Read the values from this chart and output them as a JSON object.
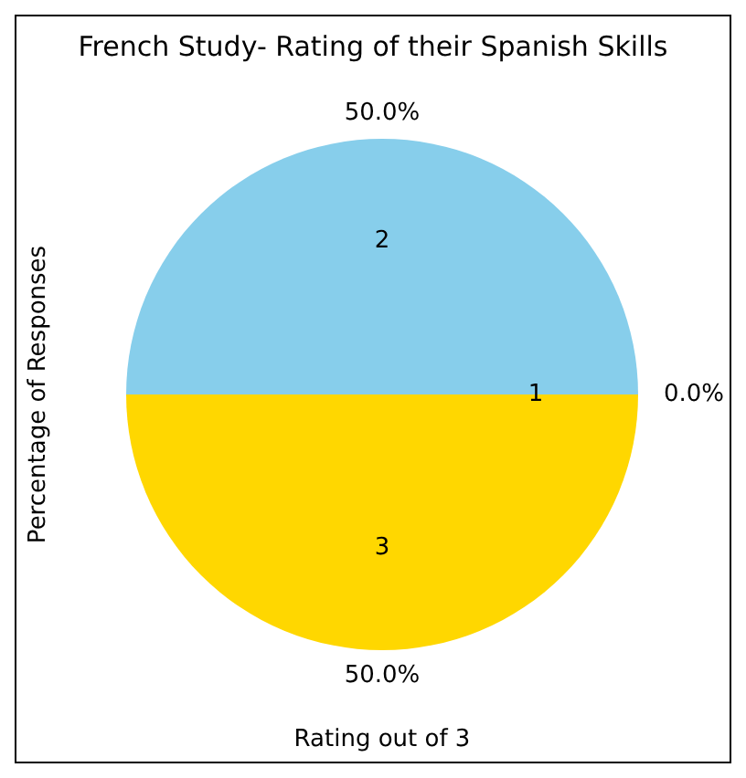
{
  "chart_data": {
    "type": "pie",
    "title": "French Study- Rating of their Spanish Skills",
    "xlabel": "Rating out of 3",
    "ylabel": "Percentage of Responses",
    "categories": [
      "1",
      "2",
      "3"
    ],
    "values": [
      0,
      50,
      50
    ],
    "value_labels": [
      "0.0%",
      "50.0%",
      "50.0%"
    ],
    "colors": [
      "#ff9999",
      "#87ceeb",
      "#ffd700"
    ],
    "legend": false
  }
}
